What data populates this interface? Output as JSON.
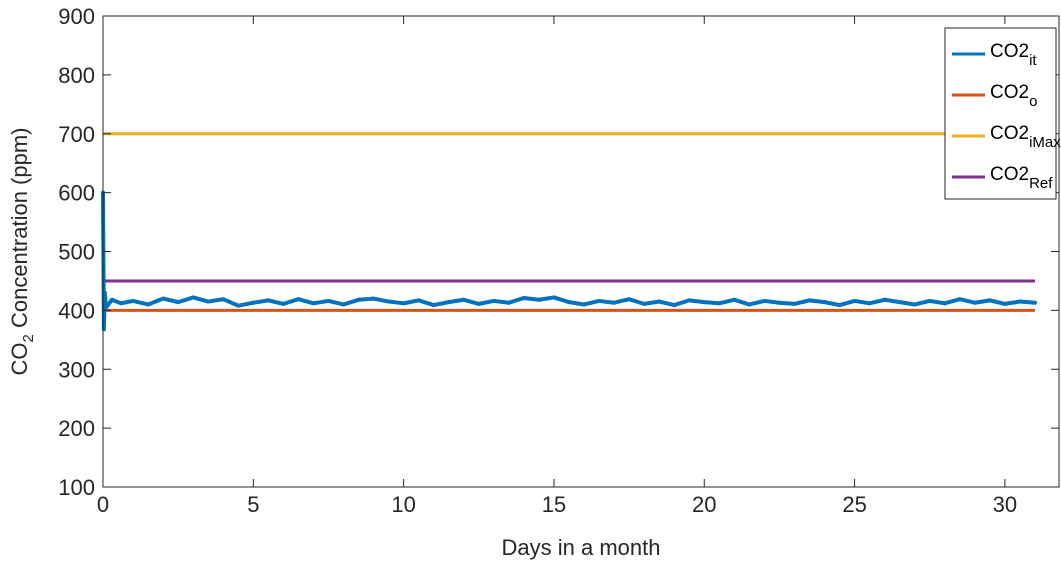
{
  "chart_data": {
    "type": "line",
    "xlabel": "Days in a month",
    "ylabel": "CO2 Concentration (ppm)",
    "ylabel_parts": {
      "base": "CO",
      "sub": "2",
      "rest": " Concentration (ppm)"
    },
    "xlim": [
      0,
      31.8
    ],
    "ylim": [
      100,
      900
    ],
    "x_ticks": [
      0,
      5,
      10,
      15,
      20,
      25,
      30
    ],
    "y_ticks": [
      100,
      200,
      300,
      400,
      500,
      600,
      700,
      800,
      900
    ],
    "grid": false,
    "legend_position": "top-right",
    "series": [
      {
        "name": "CO2it",
        "label_base": "CO2",
        "label_sub": "it",
        "color": "#0072BD",
        "line_width": 4,
        "x": [
          0,
          0.03,
          0.06,
          0.1,
          0.3,
          0.6,
          1.0,
          1.5,
          2.0,
          2.5,
          3.0,
          3.5,
          4.0,
          4.5,
          5.0,
          5.5,
          6.0,
          6.5,
          7.0,
          7.5,
          8.0,
          8.5,
          9.0,
          9.5,
          10.0,
          10.5,
          11.0,
          11.5,
          12.0,
          12.5,
          13.0,
          13.5,
          14.0,
          14.5,
          15.0,
          15.5,
          16.0,
          16.5,
          17.0,
          17.5,
          18.0,
          18.5,
          19.0,
          19.5,
          20.0,
          20.5,
          21.0,
          21.5,
          22.0,
          22.5,
          23.0,
          23.5,
          24.0,
          24.5,
          25.0,
          25.5,
          26.0,
          26.5,
          27.0,
          27.5,
          28.0,
          28.5,
          29.0,
          29.5,
          30.0,
          30.5,
          31.0
        ],
        "values": [
          600,
          368,
          430,
          405,
          418,
          412,
          416,
          410,
          420,
          414,
          422,
          415,
          419,
          408,
          413,
          417,
          411,
          419,
          412,
          416,
          410,
          418,
          420,
          415,
          412,
          417,
          409,
          414,
          418,
          411,
          416,
          413,
          421,
          418,
          422,
          414,
          410,
          416,
          413,
          419,
          411,
          415,
          409,
          417,
          414,
          412,
          418,
          410,
          416,
          413,
          411,
          417,
          414,
          409,
          416,
          412,
          418,
          414,
          410,
          416,
          412,
          419,
          413,
          417,
          411,
          415,
          413
        ]
      },
      {
        "name": "CO2o",
        "label_base": "CO2",
        "label_sub": "o",
        "color": "#D95319",
        "line_width": 3,
        "x": [
          0,
          31
        ],
        "values": [
          400,
          400
        ]
      },
      {
        "name": "CO2iMax",
        "label_base": "CO2",
        "label_sub": "iMax",
        "color": "#EDB120",
        "line_width": 3,
        "x": [
          0,
          31
        ],
        "values": [
          700,
          700
        ]
      },
      {
        "name": "CO2Ref",
        "label_base": "CO2",
        "label_sub": "Ref",
        "color": "#7E2F8E",
        "line_width": 3,
        "x": [
          0,
          31
        ],
        "values": [
          450,
          450
        ]
      }
    ]
  }
}
